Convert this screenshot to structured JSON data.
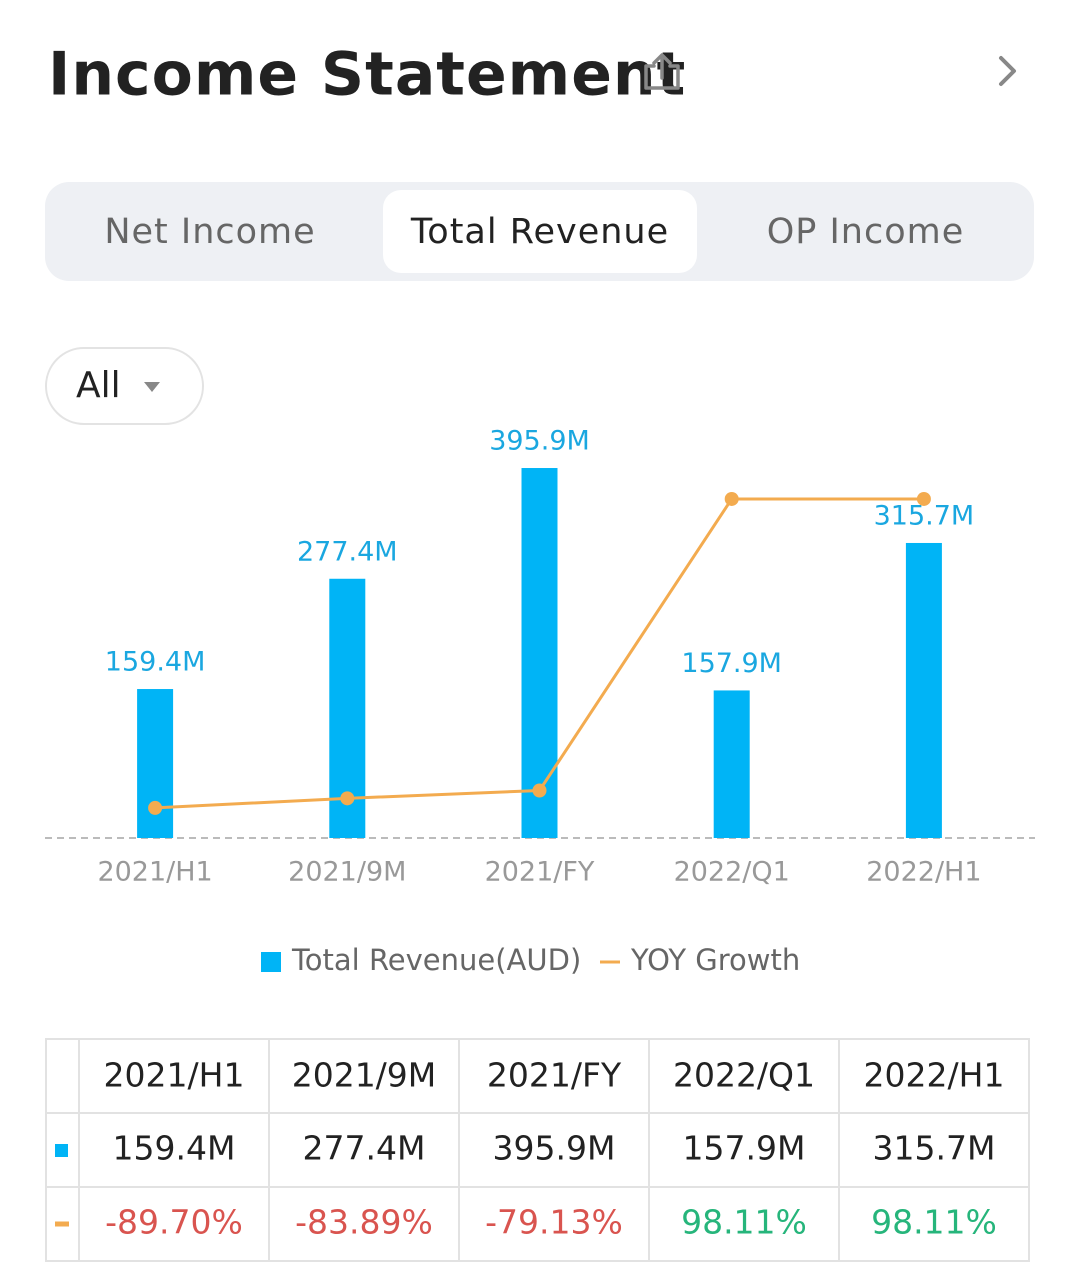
{
  "header": {
    "title": "Income Statement"
  },
  "tabs": {
    "items": [
      "Net Income",
      "Total Revenue",
      "OP Income"
    ],
    "active": 1
  },
  "filter": {
    "label": "All"
  },
  "chart_data": {
    "type": "bar",
    "categories": [
      "2021/H1",
      "2021/9M",
      "2021/FY",
      "2022/Q1",
      "2022/H1"
    ],
    "ylim": [
      0,
      420
    ],
    "y2lim": [
      -108,
      130.6
    ],
    "series": [
      {
        "name": "Total Revenue(AUD)",
        "type": "bar",
        "color": "#00b4f6",
        "values": [
          159.4,
          277.4,
          395.9,
          157.9,
          315.7
        ],
        "value_labels": [
          "159.4M",
          "277.4M",
          "395.9M",
          "157.9M",
          "315.7M"
        ]
      },
      {
        "name": "YOY Growth",
        "type": "line",
        "axis": "y2",
        "color": "#f3ab4f",
        "values": [
          -89.7,
          -83.89,
          -79.13,
          98.11,
          98.11
        ]
      }
    ]
  },
  "table": {
    "rows": [
      [
        "159.4M",
        "277.4M",
        "395.9M",
        "157.9M",
        "315.7M"
      ],
      [
        "-89.70%",
        "-83.89%",
        "-79.13%",
        "98.11%",
        "98.11%"
      ]
    ]
  }
}
